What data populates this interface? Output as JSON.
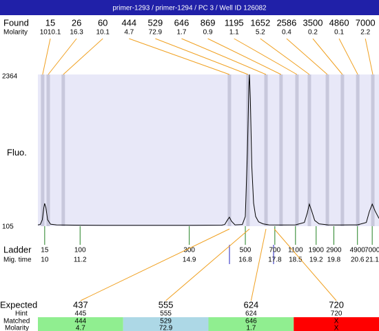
{
  "header": {
    "title": "primer-1293 / primer-1294 / PC 3 / Well ID 126082"
  },
  "found": {
    "label": "Found",
    "sub_label": "Molarity",
    "sizes": [
      15,
      26,
      60,
      444,
      529,
      646,
      869,
      1195,
      1652,
      2586,
      3500,
      4860,
      7000
    ],
    "molarity": [
      1010.1,
      16.3,
      10.1,
      4.7,
      72.9,
      1.7,
      0.9,
      1.1,
      5.2,
      0.4,
      0.2,
      0.1,
      2.2
    ],
    "times": [
      9.93,
      10.12,
      10.63,
      16.26,
      16.89,
      17.5,
      18.01,
      18.55,
      18.97,
      19.58,
      20.09,
      20.61,
      21.12
    ],
    "line_color": "#f0a020",
    "band_color": "#c8c8dc"
  },
  "chart_data": {
    "type": "line",
    "y_label": "Fluo.",
    "xlim": [
      9.77,
      21.33
    ],
    "ylim": [
      105,
      2364
    ],
    "yticks": [
      105,
      2364
    ],
    "background": "#e8e8f8",
    "color": "#000000",
    "x": [
      9.77,
      9.85,
      9.92,
      9.97,
      10.0,
      10.04,
      10.1,
      10.2,
      10.4,
      11,
      12,
      13,
      14,
      15,
      16,
      16.1,
      16.2,
      16.26,
      16.33,
      16.45,
      16.7,
      16.8,
      16.87,
      16.92,
      16.94,
      16.97,
      17.02,
      17.08,
      17.15,
      17.25,
      17.4,
      17.6,
      18.0,
      18.5,
      18.8,
      18.9,
      18.97,
      19.05,
      19.15,
      19.3,
      19.6,
      20.0,
      20.6,
      20.9,
      21.0,
      21.1,
      21.2,
      21.33
    ],
    "values": [
      125,
      130,
      200,
      380,
      444,
      380,
      200,
      135,
      125,
      120,
      118,
      118,
      118,
      118,
      120,
      130,
      200,
      238,
      180,
      125,
      130,
      250,
      1200,
      2200,
      2364,
      2000,
      1000,
      450,
      250,
      170,
      140,
      125,
      122,
      125,
      160,
      300,
      434,
      330,
      190,
      140,
      125,
      122,
      125,
      160,
      320,
      434,
      330,
      220
    ]
  },
  "ladder": {
    "label": "Ladder",
    "sub_label": "Mig. time",
    "sizes": [
      15,
      100,
      300,
      500,
      700,
      1100,
      1900,
      2900,
      4900,
      7000
    ],
    "mig_times": [
      10,
      11.2,
      14.9,
      16.8,
      17.8,
      18.5,
      19.2,
      19.8,
      20.6,
      21.1
    ],
    "color": "#208020"
  },
  "expected": {
    "labels": {
      "expected": "Expected",
      "hint": "Hint",
      "matched": "Matched",
      "molarity": "Molarity"
    },
    "columns": [
      {
        "expected": 437,
        "hint": 445,
        "matched": 444,
        "molarity": 4.7,
        "color": "#90ee90"
      },
      {
        "expected": 555,
        "hint": 555,
        "matched": 529,
        "molarity": 72.9,
        "color": "#add8e6"
      },
      {
        "expected": 624,
        "hint": 624,
        "matched": 646,
        "molarity": 1.7,
        "color": "#90ee90"
      },
      {
        "expected": 720,
        "hint": 720,
        "matched": "X",
        "molarity": "X",
        "color": "#ff0000"
      }
    ]
  }
}
